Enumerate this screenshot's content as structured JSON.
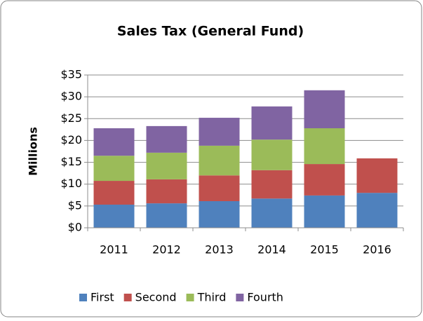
{
  "chart_data": {
    "type": "stacked_bar",
    "title": "Sales Tax (General Fund)",
    "y_label": "Millions",
    "categories": [
      "2011",
      "2012",
      "2013",
      "2014",
      "2015",
      "2016"
    ],
    "series": [
      {
        "name": "First",
        "color": "#4f81bd",
        "values": [
          5.3,
          5.6,
          6.1,
          6.7,
          7.4,
          8.0
        ]
      },
      {
        "name": "Second",
        "color": "#c0504d",
        "values": [
          5.45,
          5.5,
          5.9,
          6.5,
          7.2,
          7.9
        ]
      },
      {
        "name": "Third",
        "color": "#9bbb59",
        "values": [
          5.75,
          6.1,
          6.8,
          7.0,
          8.2,
          null
        ]
      },
      {
        "name": "Fourth",
        "color": "#8064a2",
        "values": [
          6.3,
          6.1,
          6.4,
          7.6,
          8.7,
          null
        ]
      }
    ],
    "ylim": [
      0,
      35
    ],
    "yticks": [
      {
        "value": 0,
        "label": "$0"
      },
      {
        "value": 5,
        "label": "$5"
      },
      {
        "value": 10,
        "label": "$10"
      },
      {
        "value": 15,
        "label": "$15"
      },
      {
        "value": 20,
        "label": "$20"
      },
      {
        "value": 25,
        "label": "$25"
      },
      {
        "value": 30,
        "label": "$30"
      },
      {
        "value": 35,
        "label": "$35"
      }
    ],
    "grid": true,
    "legend": "bottom"
  }
}
